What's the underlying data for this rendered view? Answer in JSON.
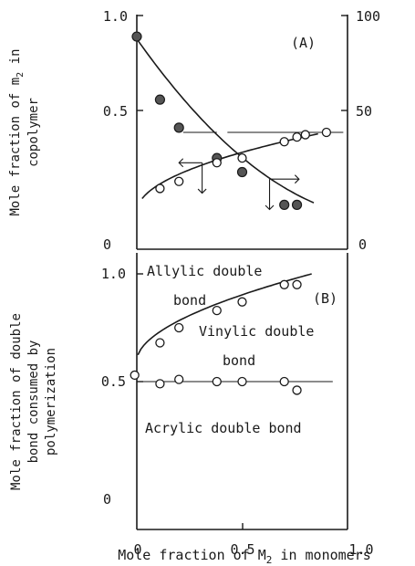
{
  "chart_data": [
    {
      "panel": "(A)",
      "type": "scatter",
      "ylabel_left": "Mole fraction of m2 in copolymer",
      "ylabel_left_parts": [
        "Mole fraction of m",
        "2",
        " in"
      ],
      "ylabel_left_line2": "copolymer",
      "xlim": [
        0,
        1.0
      ],
      "ylim_left": [
        0,
        1.0
      ],
      "ylim_right": [
        0,
        100
      ],
      "yticks_left": [
        "0",
        "0.5",
        "1.0"
      ],
      "yticks_right": [
        "0",
        "50",
        "100"
      ],
      "reference_line_y": 0.5,
      "series": [
        {
          "marker": "filled-circle",
          "axis": "left",
          "x": [
            0.0,
            0.11,
            0.2,
            0.38,
            0.5,
            0.7,
            0.76
          ],
          "y": [
            0.91,
            0.64,
            0.52,
            0.39,
            0.33,
            0.19,
            0.19
          ]
        },
        {
          "marker": "open-circle",
          "axis": "right",
          "x": [
            0.11,
            0.2,
            0.38,
            0.5,
            0.7,
            0.76,
            0.8,
            0.9
          ],
          "y": [
            26,
            29,
            37,
            39,
            46,
            48,
            49,
            50
          ]
        }
      ]
    },
    {
      "panel": "(B)",
      "type": "scatter",
      "ylabel": "Mole fraction of double bond consumed by polymerization",
      "ylabel_lines": [
        "Mole fraction of double",
        "bond consumed by",
        "polymerization"
      ],
      "xlabel_parts": [
        "Mole fraction of M",
        "2",
        " in monomers"
      ],
      "xlim": [
        0,
        1.0
      ],
      "ylim": [
        0,
        1.0
      ],
      "xticks": [
        "0",
        "0.5",
        "1.0"
      ],
      "yticks": [
        "0",
        "0.5",
        "1.0"
      ],
      "annotations": {
        "allylic_1": "Allylic double",
        "allylic_2": "bond",
        "vinylic_1": "Vinylic double",
        "vinylic_2": "bond",
        "acrylic": "Acrylic double bond"
      },
      "series": [
        {
          "marker": "open-circle",
          "x": [
            0.11,
            0.2,
            0.38,
            0.5,
            0.7,
            0.76
          ],
          "y": [
            0.68,
            0.75,
            0.83,
            0.87,
            0.95,
            0.95
          ]
        },
        {
          "marker": "open-circle",
          "x": [
            -0.01,
            0.11,
            0.2,
            0.38,
            0.5,
            0.7,
            0.76
          ],
          "y": [
            0.53,
            0.49,
            0.51,
            0.5,
            0.5,
            0.5,
            0.46
          ]
        }
      ]
    }
  ]
}
